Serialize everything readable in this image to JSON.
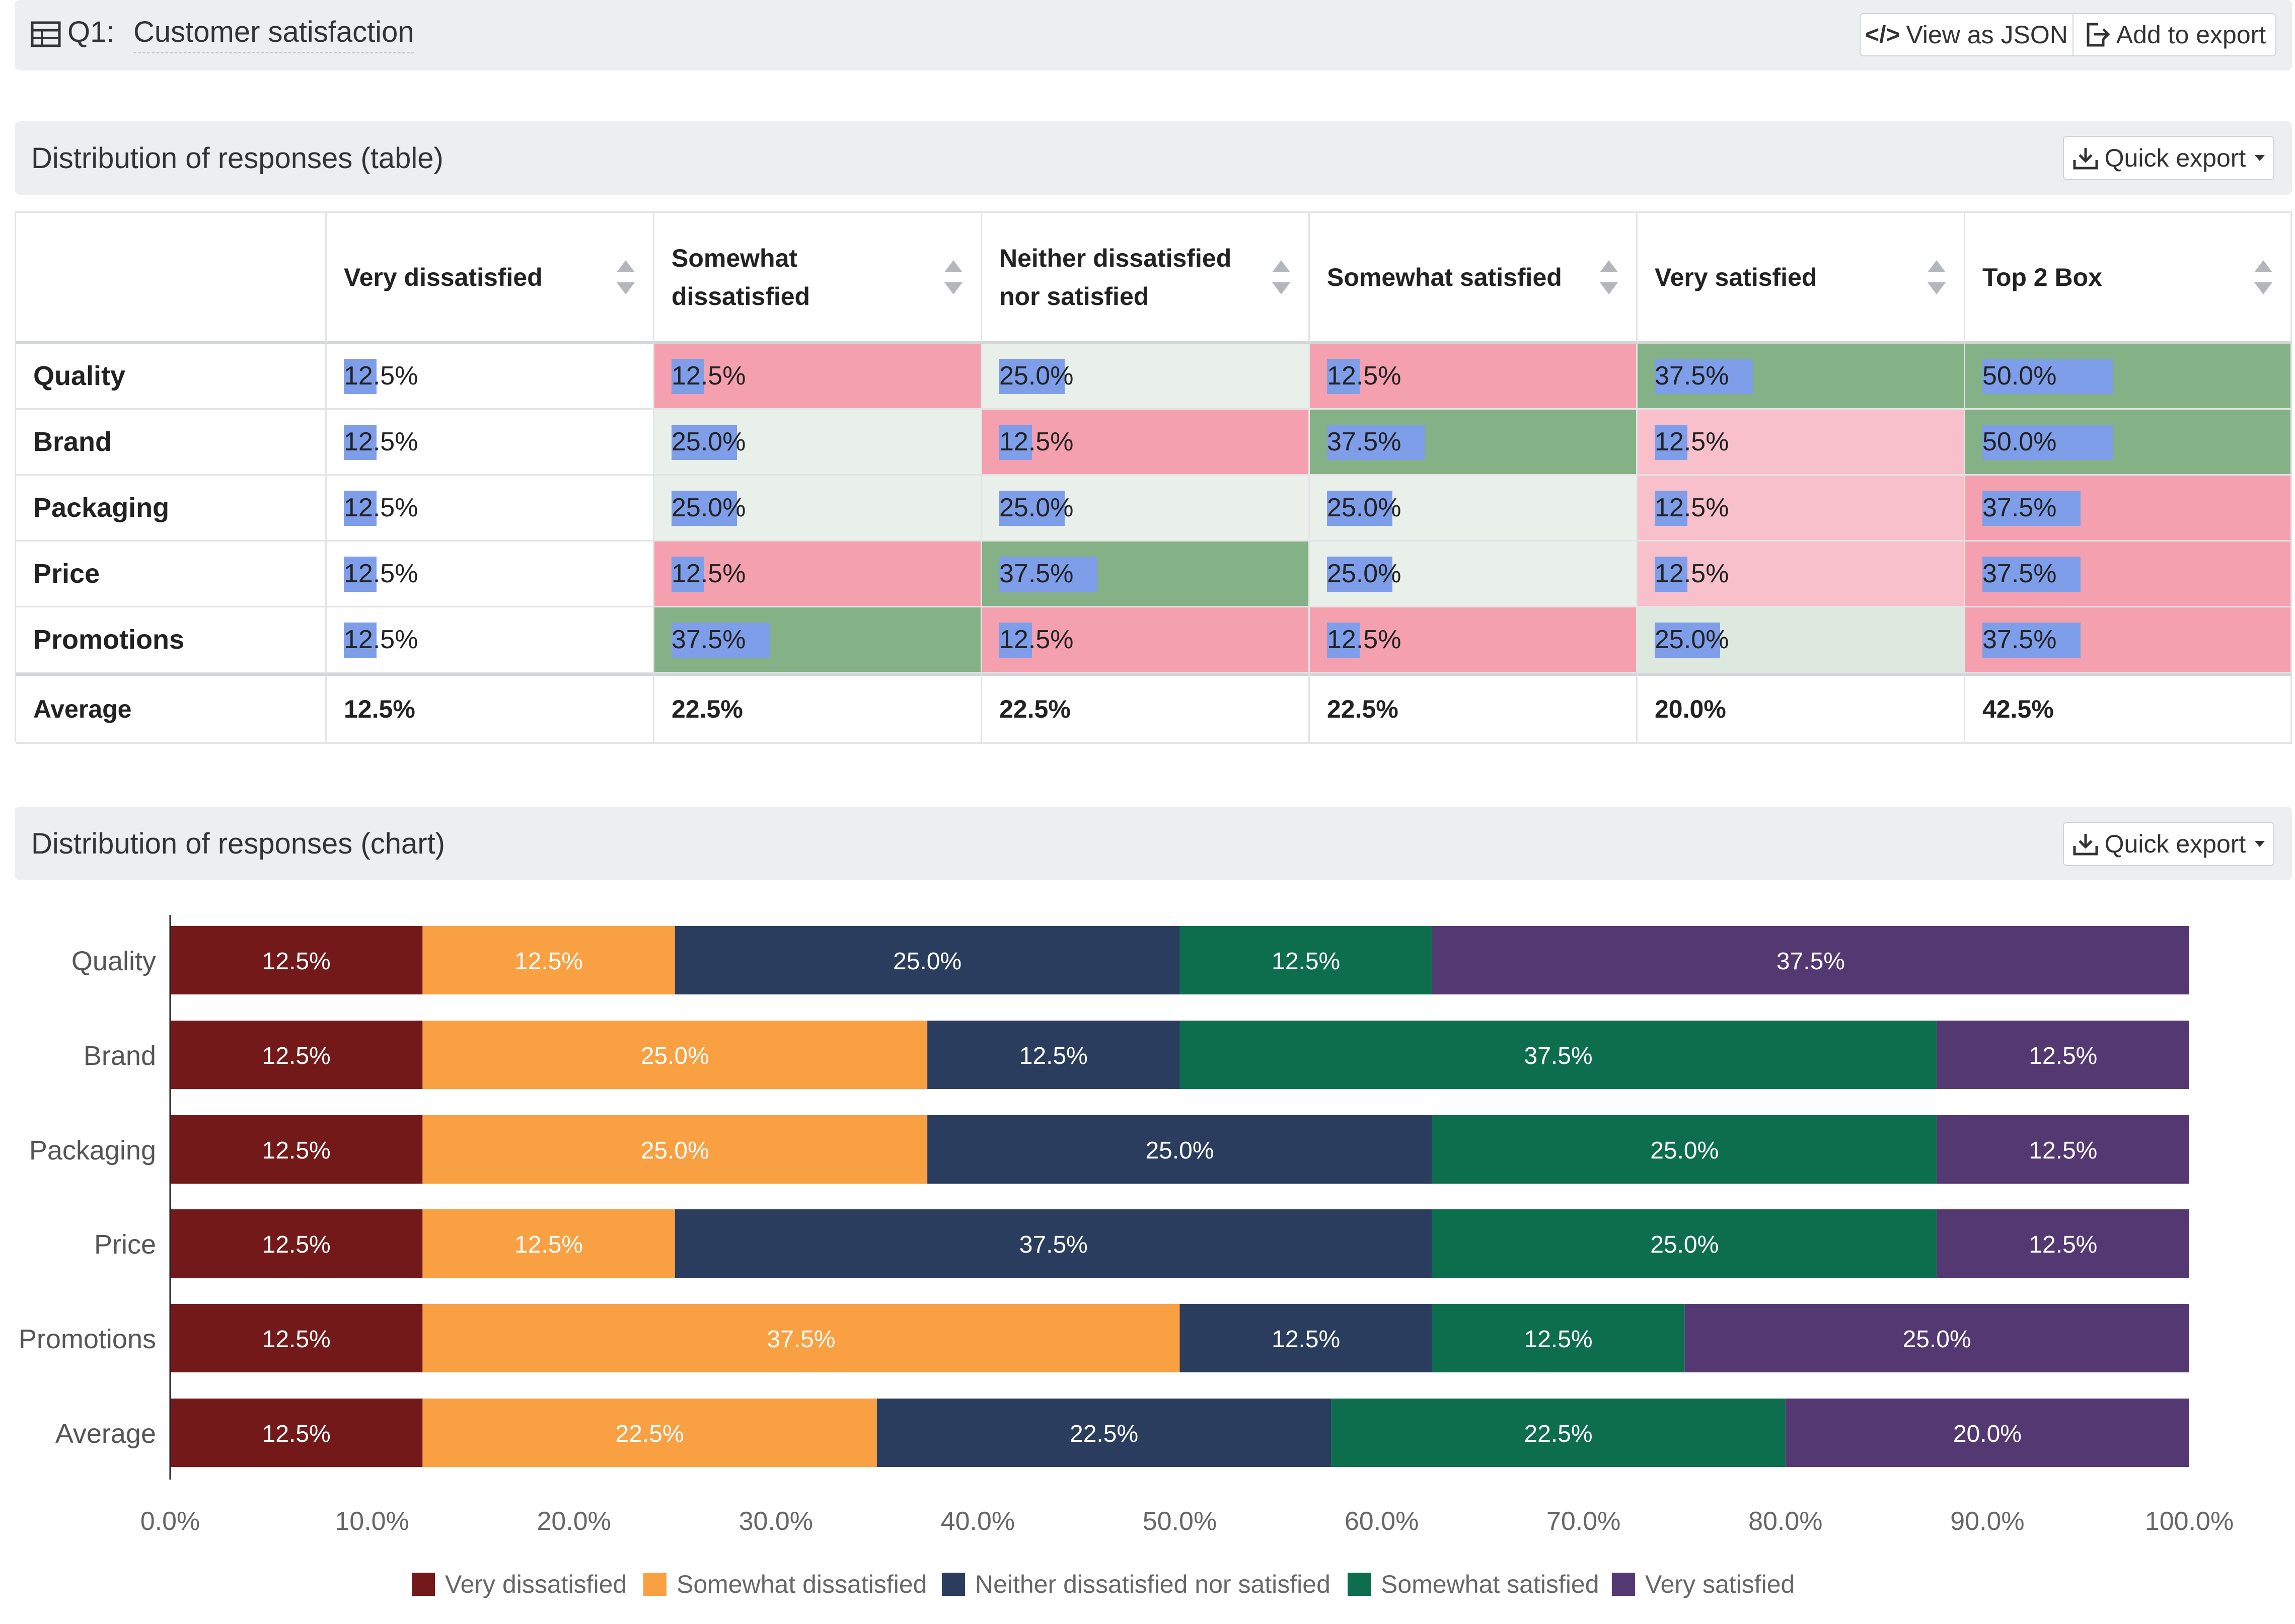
{
  "header": {
    "question_prefix": "Q1:",
    "question_title": "Customer satisfaction",
    "view_json_label": "View as JSON",
    "add_export_label": "Add to export"
  },
  "table_panel": {
    "title": "Distribution of responses (table)",
    "quick_export_label": "Quick export",
    "columns": [
      "Very dissatisfied",
      "Somewhat dissatisfied",
      "Neither dissatisfied nor satisfied",
      "Somewhat satisfied",
      "Very satisfied",
      "Top 2 Box"
    ],
    "rows": [
      {
        "label": "Quality",
        "cells": [
          "12.5%",
          "12.5%",
          "25.0%",
          "12.5%",
          "37.5%",
          "50.0%"
        ],
        "values": [
          12.5,
          12.5,
          25.0,
          12.5,
          37.5,
          50.0
        ],
        "shading": [
          "none",
          "low",
          "neutral",
          "low",
          "high",
          "high"
        ]
      },
      {
        "label": "Brand",
        "cells": [
          "12.5%",
          "25.0%",
          "12.5%",
          "37.5%",
          "12.5%",
          "50.0%"
        ],
        "values": [
          12.5,
          25.0,
          12.5,
          37.5,
          12.5,
          50.0
        ],
        "shading": [
          "none",
          "neutral",
          "low",
          "high",
          "lowlight",
          "high"
        ]
      },
      {
        "label": "Packaging",
        "cells": [
          "12.5%",
          "25.0%",
          "25.0%",
          "25.0%",
          "12.5%",
          "37.5%"
        ],
        "values": [
          12.5,
          25.0,
          25.0,
          25.0,
          12.5,
          37.5
        ],
        "shading": [
          "none",
          "neutral",
          "neutral",
          "neutral",
          "lowlight",
          "low"
        ]
      },
      {
        "label": "Price",
        "cells": [
          "12.5%",
          "12.5%",
          "37.5%",
          "25.0%",
          "12.5%",
          "37.5%"
        ],
        "values": [
          12.5,
          12.5,
          37.5,
          25.0,
          12.5,
          37.5
        ],
        "shading": [
          "none",
          "low",
          "high",
          "neutral",
          "lowlight",
          "low"
        ]
      },
      {
        "label": "Promotions",
        "cells": [
          "12.5%",
          "37.5%",
          "12.5%",
          "12.5%",
          "25.0%",
          "37.5%"
        ],
        "values": [
          12.5,
          37.5,
          12.5,
          12.5,
          25.0,
          37.5
        ],
        "shading": [
          "none",
          "high",
          "low",
          "low",
          "midlight",
          "low"
        ]
      }
    ],
    "average": {
      "label": "Average",
      "cells": [
        "12.5%",
        "22.5%",
        "22.5%",
        "22.5%",
        "20.0%",
        "42.5%"
      ]
    },
    "colors": {
      "none": "#ffffff",
      "low": "#f4a0ae",
      "lowlight": "#f8c0ca",
      "neutral": "#e9efe9",
      "midlight": "#dde9de",
      "high": "#85b186",
      "bar": "#7e9ee9"
    }
  },
  "chart_panel": {
    "title": "Distribution of responses (chart)",
    "quick_export_label": "Quick export"
  },
  "chart_data": {
    "type": "bar",
    "orientation": "horizontal",
    "stacked": true,
    "categories": [
      "Quality",
      "Brand",
      "Packaging",
      "Price",
      "Promotions",
      "Average"
    ],
    "series": [
      {
        "name": "Very dissatisfied",
        "color": "#731919",
        "values": [
          12.5,
          12.5,
          12.5,
          12.5,
          12.5,
          12.5
        ]
      },
      {
        "name": "Somewhat dissatisfied",
        "color": "#f8a042",
        "values": [
          12.5,
          25.0,
          25.0,
          12.5,
          37.5,
          22.5
        ]
      },
      {
        "name": "Neither dissatisfied nor satisfied",
        "color": "#2b3d5e",
        "values": [
          25.0,
          12.5,
          25.0,
          37.5,
          12.5,
          22.5
        ]
      },
      {
        "name": "Somewhat satisfied",
        "color": "#0d6e4e",
        "values": [
          12.5,
          37.5,
          25.0,
          25.0,
          12.5,
          22.5
        ]
      },
      {
        "name": "Very satisfied",
        "color": "#543871",
        "values": [
          37.5,
          12.5,
          12.5,
          12.5,
          25.0,
          20.0
        ]
      }
    ],
    "xlim": [
      0,
      100
    ],
    "xticks": [
      "0.0%",
      "10.0%",
      "20.0%",
      "30.0%",
      "40.0%",
      "50.0%",
      "60.0%",
      "70.0%",
      "80.0%",
      "90.0%",
      "100.0%"
    ],
    "legend": "bottom",
    "grid": false
  }
}
